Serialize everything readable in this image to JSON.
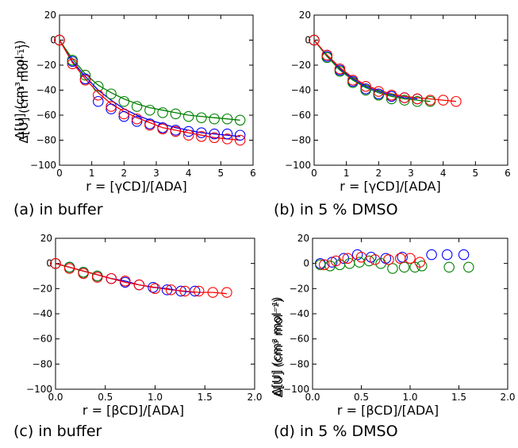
{
  "colors": {
    "series_1": "#0000ff",
    "series_2": "#008000",
    "series_3": "#ff0000",
    "fit_line": "#000000"
  },
  "chart_data": [
    {
      "panel_label": "(a) in buffer",
      "type": "scatter",
      "fit_lines": true,
      "x_tex": "r = [γCD]/[ADA]",
      "y_tex": "Δ[U] (cm³ mol⁻¹)",
      "xlim": [
        0,
        6
      ],
      "ylim": [
        -100,
        20
      ],
      "xticks": [
        "0",
        "1",
        "2",
        "3",
        "4",
        "5",
        "6"
      ],
      "xtick_values": [
        0,
        1,
        2,
        3,
        4,
        5,
        6
      ],
      "yticks": [
        "20",
        "0",
        "−20",
        "−40",
        "−60",
        "−80",
        "−100"
      ],
      "ytick_values": [
        20,
        0,
        -20,
        -40,
        -60,
        -80,
        -100
      ],
      "series": [
        {
          "color": "#0000ff",
          "x": [
            0.0,
            0.4,
            0.8,
            1.2,
            1.6,
            2.0,
            2.4,
            2.8,
            3.2,
            3.6,
            4.0,
            4.4,
            4.8,
            5.2,
            5.6
          ],
          "y": [
            0,
            -17,
            -31,
            -49,
            -55,
            -61,
            -65,
            -67,
            -70,
            -72,
            -73,
            -74,
            -75,
            -75,
            -76
          ],
          "fit": [
            0,
            -17,
            -29,
            -40,
            -48,
            -55,
            -60,
            -64,
            -67,
            -70,
            -72,
            -74,
            -75,
            -76,
            -77
          ]
        },
        {
          "color": "#008000",
          "x": [
            0.0,
            0.4,
            0.8,
            1.2,
            1.6,
            2.0,
            2.4,
            2.8,
            3.2,
            3.6,
            4.0,
            4.4,
            4.8,
            5.2,
            5.6
          ],
          "y": [
            0,
            -16,
            -28,
            -37,
            -43,
            -49,
            -53,
            -56,
            -58,
            -59,
            -61,
            -62,
            -63,
            -63,
            -64
          ],
          "fit": [
            0,
            -15,
            -27,
            -36,
            -42,
            -47,
            -51,
            -54,
            -56,
            -58,
            -60,
            -61,
            -62,
            -63,
            -64
          ]
        },
        {
          "color": "#ff0000",
          "x": [
            0.0,
            0.4,
            0.8,
            1.2,
            1.6,
            2.0,
            2.4,
            2.8,
            3.2,
            3.6,
            4.0,
            4.4,
            4.8,
            5.2,
            5.6
          ],
          "y": [
            0,
            -19,
            -32,
            -44,
            -53,
            -59,
            -63,
            -68,
            -71,
            -73,
            -76,
            -77,
            -78,
            -79,
            -80
          ],
          "fit": [
            0,
            -18,
            -31,
            -42,
            -51,
            -57,
            -62,
            -66,
            -70,
            -72,
            -74,
            -76,
            -78,
            -79,
            -80
          ]
        }
      ]
    },
    {
      "panel_label": "(b) in 5 % DMSO",
      "type": "scatter",
      "fit_lines": true,
      "x_tex": "r = [γCD]/[ADA]",
      "y_tex": "Δ[U] (cm³ mol⁻¹)",
      "xlim": [
        0,
        6
      ],
      "ylim": [
        -100,
        20
      ],
      "xticks": [
        "0",
        "1",
        "2",
        "3",
        "4",
        "5",
        "6"
      ],
      "xtick_values": [
        0,
        1,
        2,
        3,
        4,
        5,
        6
      ],
      "yticks": [
        "20",
        "0",
        "−20",
        "−40",
        "−60",
        "−80",
        "−100"
      ],
      "ytick_values": [
        20,
        0,
        -20,
        -40,
        -60,
        -80,
        -100
      ],
      "series": [
        {
          "color": "#0000ff",
          "x": [
            0.0,
            0.4,
            0.8,
            1.2,
            1.6,
            2.0,
            2.4,
            2.8,
            3.2
          ],
          "y": [
            0,
            -13,
            -24,
            -33,
            -39,
            -43,
            -45,
            -46,
            -47
          ],
          "fit": [
            0,
            -13,
            -23,
            -31,
            -37,
            -41,
            -44,
            -46,
            -47
          ]
        },
        {
          "color": "#008000",
          "x": [
            0.0,
            0.4,
            0.8,
            1.2,
            1.6,
            2.0,
            2.4,
            2.8,
            3.2,
            3.6
          ],
          "y": [
            0,
            -14,
            -25,
            -34,
            -40,
            -44,
            -47,
            -48,
            -49,
            -49
          ],
          "fit": [
            0,
            -13,
            -24,
            -32,
            -38,
            -42,
            -45,
            -47,
            -48,
            -49
          ]
        },
        {
          "color": "#ff0000",
          "x": [
            0.0,
            0.4,
            0.8,
            1.2,
            1.6,
            2.0,
            2.4,
            2.8,
            3.2,
            3.6,
            4.0,
            4.4
          ],
          "y": [
            0,
            -12,
            -23,
            -32,
            -37,
            -41,
            -44,
            -46,
            -47,
            -48,
            -48,
            -49
          ],
          "fit": [
            0,
            -12,
            -22,
            -30,
            -36,
            -40,
            -43,
            -45,
            -46,
            -47,
            -48,
            -49
          ]
        }
      ]
    },
    {
      "panel_label": "(c) in buffer",
      "type": "scatter",
      "fit_lines": true,
      "x_tex": "r = [βCD]/[ADA]",
      "y_tex": "Δ[U] (cm³ mol⁻¹)",
      "xlim": [
        0,
        2
      ],
      "ylim": [
        -100,
        20
      ],
      "xticks": [
        "0.0",
        "0.5",
        "1.0",
        "1.5",
        "2.0"
      ],
      "xtick_values": [
        0,
        0.5,
        1.0,
        1.5,
        2.0
      ],
      "yticks": [
        "20",
        "0",
        "−20",
        "−40",
        "−60",
        "−80",
        "−100"
      ],
      "ytick_values": [
        20,
        0,
        -20,
        -40,
        -60,
        -80,
        -100
      ],
      "series": [
        {
          "color": "#0000ff",
          "x": [
            0.0,
            0.14,
            0.28,
            0.42,
            0.56,
            0.7,
            0.84,
            0.98,
            1.12,
            1.26,
            1.4
          ],
          "y": [
            0,
            -3,
            -7,
            -10,
            -12,
            -15,
            -17,
            -19,
            -21,
            -22,
            -22
          ],
          "fit": [
            0,
            -3,
            -6,
            -9,
            -12,
            -14,
            -17,
            -19,
            -20,
            -22,
            -23
          ]
        },
        {
          "color": "#008000",
          "x": [
            0.0,
            0.14,
            0.28,
            0.42
          ],
          "y": [
            0,
            -3,
            -7,
            -10
          ],
          "fit": [
            0,
            -3,
            -6,
            -9
          ]
        },
        {
          "color": "#ff0000",
          "x": [
            0.0,
            0.14,
            0.28,
            0.42,
            0.56,
            0.7,
            0.84,
            1.0,
            1.16,
            1.3,
            1.44,
            1.58,
            1.72
          ],
          "y": [
            0,
            -4,
            -8,
            -11,
            -12,
            -14,
            -17,
            -20,
            -21,
            -22,
            -22,
            -23,
            -23
          ],
          "fit": [
            0,
            -3,
            -6,
            -9,
            -12,
            -15,
            -17,
            -19,
            -21,
            -22,
            -23,
            -23,
            -24
          ]
        }
      ]
    },
    {
      "panel_label": "(d) in 5 % DMSO",
      "type": "scatter",
      "fit_lines": false,
      "x_tex": "r = [βCD]/[ADA]",
      "y_tex": "Δ[U] (cm³ mol⁻¹)",
      "xlim": [
        0,
        2
      ],
      "ylim": [
        -100,
        20
      ],
      "xticks": [
        "0.0",
        "0.5",
        "1.0",
        "1.5",
        "2.0"
      ],
      "xtick_values": [
        0,
        0.5,
        1.0,
        1.5,
        2.0
      ],
      "yticks": [
        "20",
        "0",
        "−20",
        "−40",
        "−60",
        "−80",
        "−100"
      ],
      "ytick_values": [
        20,
        0,
        -20,
        -40,
        -60,
        -80,
        -100
      ],
      "series": [
        {
          "color": "#0000ff",
          "x": [
            0.08,
            0.2,
            0.32,
            0.46,
            0.6,
            0.75,
            0.92,
            1.22,
            1.38,
            1.55
          ],
          "y": [
            0,
            1,
            4,
            7,
            5,
            4,
            5,
            7,
            7,
            7
          ],
          "fit": []
        },
        {
          "color": "#008000",
          "x": [
            0.08,
            0.18,
            0.28,
            0.38,
            0.48,
            0.58,
            0.7,
            0.82,
            0.94,
            1.05,
            1.12,
            1.4,
            1.6
          ],
          "y": [
            -1,
            -2,
            -1,
            0,
            1,
            2,
            0,
            -4,
            -3,
            -3,
            -2,
            -3,
            -3
          ],
          "fit": []
        },
        {
          "color": "#ff0000",
          "x": [
            0.12,
            0.24,
            0.36,
            0.5,
            0.64,
            0.78,
            0.9,
            1.0,
            1.1
          ],
          "y": [
            -1,
            2,
            4,
            5,
            3,
            3,
            4,
            4,
            1
          ],
          "fit": []
        }
      ]
    }
  ]
}
